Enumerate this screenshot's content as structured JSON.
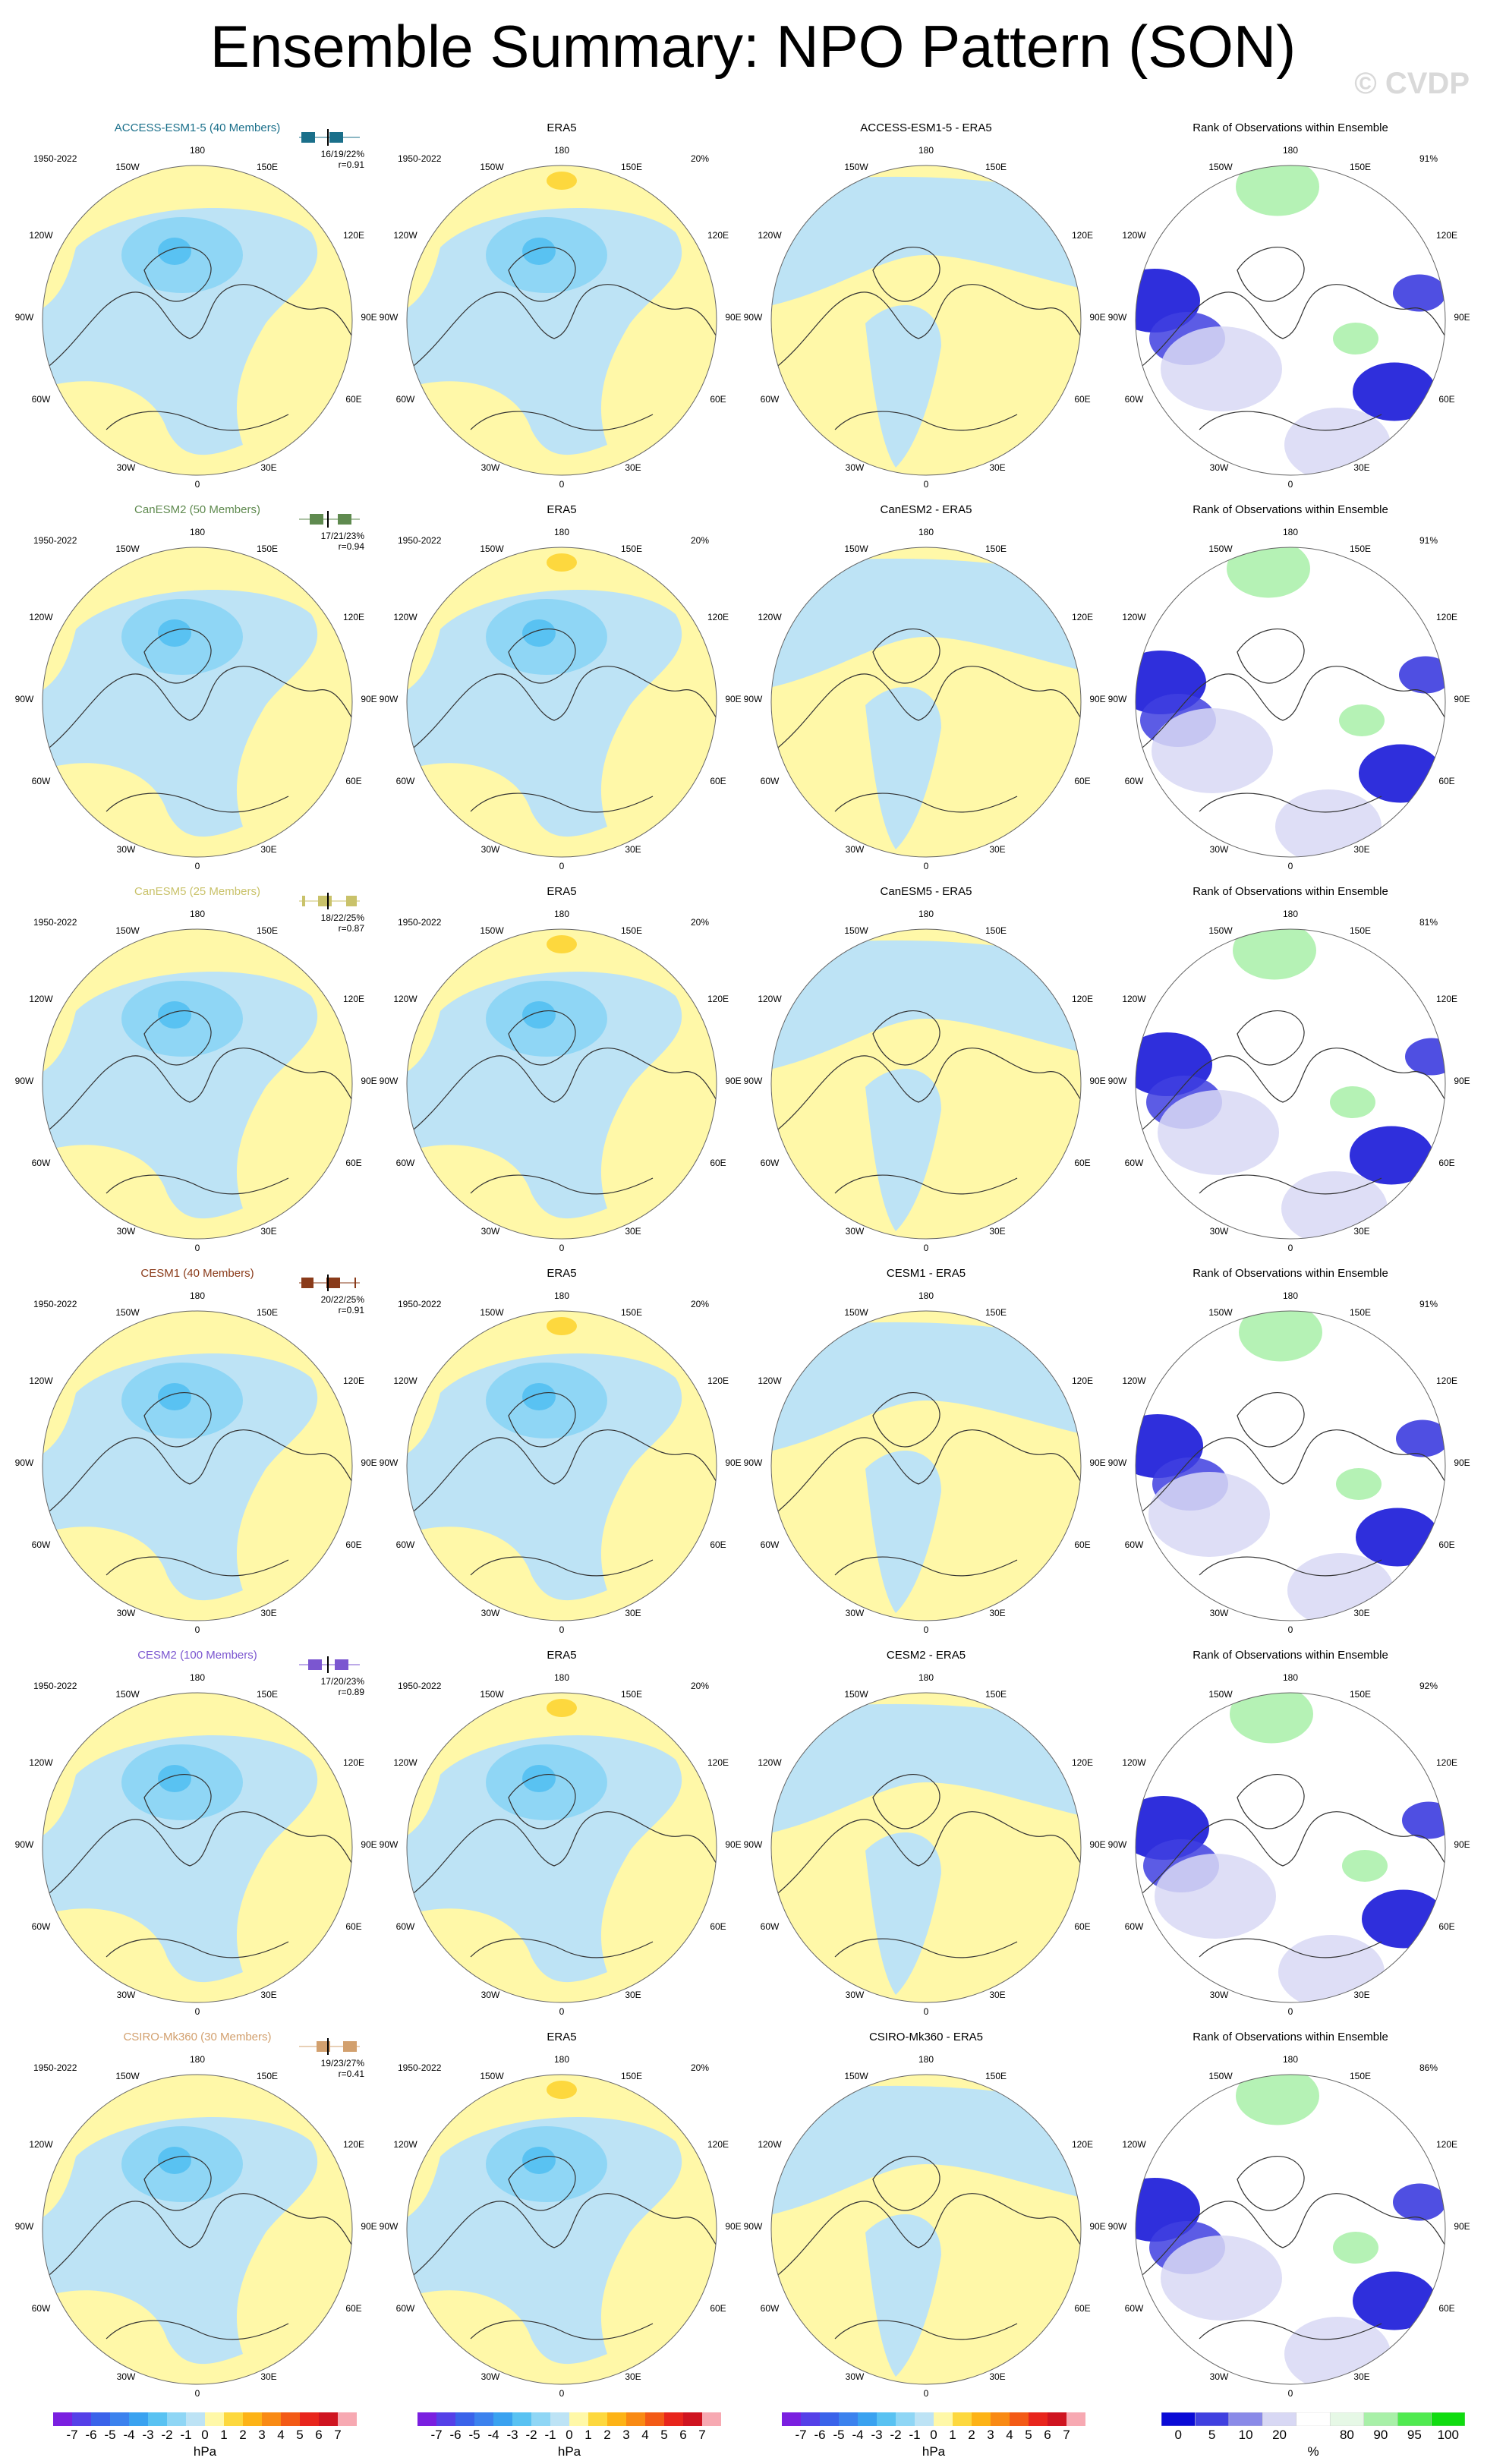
{
  "header": {
    "title": "Ensemble Summary: NPO Pattern (SON)",
    "watermark": "© CVDP"
  },
  "period": "1950-2022",
  "obs_name": "ERA5",
  "obs_pct": "20%",
  "rank_title": "Rank of Observations within Ensemble",
  "lon_labels": {
    "n": "180",
    "nw": "150W",
    "ne": "150E",
    "wnw": "120W",
    "ene": "120E",
    "w": "90W",
    "e": "90E",
    "wsw": "60W",
    "ese": "60E",
    "sw": "30W",
    "se": "30E",
    "s": "0"
  },
  "rows": [
    {
      "model": "ACCESS-ESM1-5 (40 Members)",
      "color": "#1a6f8a",
      "stats": "16/19/22%",
      "r": "r=0.91",
      "diff_title": "ACCESS-ESM1-5 - ERA5",
      "rank_pct": "91%"
    },
    {
      "model": "CanESM2 (50 Members)",
      "color": "#5f8a4f",
      "stats": "17/21/23%",
      "r": "r=0.94",
      "diff_title": "CanESM2 - ERA5",
      "rank_pct": "91%"
    },
    {
      "model": "CanESM5 (25 Members)",
      "color": "#c9c26a",
      "stats": "18/22/25%",
      "r": "r=0.87",
      "diff_title": "CanESM5 - ERA5",
      "rank_pct": "81%"
    },
    {
      "model": "CESM1 (40 Members)",
      "color": "#8a3b1a",
      "stats": "20/22/25%",
      "r": "r=0.91",
      "diff_title": "CESM1 - ERA5",
      "rank_pct": "91%"
    },
    {
      "model": "CESM2 (100 Members)",
      "color": "#7b56d0",
      "stats": "17/20/23%",
      "r": "r=0.89",
      "diff_title": "CESM2 - ERA5",
      "rank_pct": "92%"
    },
    {
      "model": "CSIRO-Mk360 (30 Members)",
      "color": "#d2a06e",
      "stats": "19/23/27%",
      "r": "r=0.41",
      "diff_title": "CSIRO-Mk360 - ERA5",
      "rank_pct": "86%"
    }
  ],
  "colorbar_hpa": {
    "labels": [
      "-7",
      "-6",
      "-5",
      "-4",
      "-3",
      "-2",
      "-1",
      "0",
      "1",
      "2",
      "3",
      "4",
      "5",
      "6",
      "7"
    ],
    "unit": "hPa",
    "colors": [
      "#7a1fe0",
      "#5540e8",
      "#3a63ea",
      "#3c82ee",
      "#3aa2f0",
      "#59c2f2",
      "#8fd6f5",
      "#bde3f5",
      "#fff8a8",
      "#fdd83e",
      "#fdb316",
      "#f98a14",
      "#f35a16",
      "#e8251c",
      "#cf1420",
      "#f7a9b2"
    ]
  },
  "colorbar_rank": {
    "labels": [
      "0",
      "5",
      "10",
      "20",
      "80",
      "90",
      "95",
      "100"
    ],
    "unit": "%",
    "colors": [
      "#0a0ad6",
      "#4040e0",
      "#8a8ae8",
      "#d8d8f4",
      "#ffffff",
      "#e6f8e6",
      "#a8f0a8",
      "#50ea50",
      "#10dc10"
    ]
  },
  "chart_data": [
    {
      "type": "heatmap",
      "title": "Ensemble Summary: NPO Pattern (SON)",
      "subtitle": "ACCESS-ESM1-5 (40 Members)",
      "period": "1950-2022",
      "pct_explained": "16/19/22%",
      "pattern_correlation": 0.91,
      "units": "hPa",
      "range": [
        -7,
        7
      ]
    },
    {
      "type": "heatmap",
      "subtitle": "CanESM2 (50 Members)",
      "pct_explained": "17/21/23%",
      "pattern_correlation": 0.94,
      "units": "hPa"
    },
    {
      "type": "heatmap",
      "subtitle": "CanESM5 (25 Members)",
      "pct_explained": "18/22/25%",
      "pattern_correlation": 0.87,
      "units": "hPa"
    },
    {
      "type": "heatmap",
      "subtitle": "CESM1 (40 Members)",
      "pct_explained": "20/22/25%",
      "pattern_correlation": 0.91,
      "units": "hPa"
    },
    {
      "type": "heatmap",
      "subtitle": "CESM2 (100 Members)",
      "pct_explained": "17/20/23%",
      "pattern_correlation": 0.89,
      "units": "hPa"
    },
    {
      "type": "heatmap",
      "subtitle": "CSIRO-Mk360 (30 Members)",
      "pct_explained": "19/23/27%",
      "pattern_correlation": 0.41,
      "units": "hPa"
    },
    {
      "type": "heatmap",
      "subtitle": "ERA5",
      "period": "1950-2022",
      "pct_explained": "20%",
      "units": "hPa"
    },
    {
      "type": "heatmap",
      "subtitle": "Rank of Observations within Ensemble",
      "units": "%",
      "levels": [
        0,
        5,
        10,
        20,
        80,
        90,
        95,
        100
      ],
      "pct_within": [
        "91%",
        "91%",
        "81%",
        "91%",
        "92%",
        "86%"
      ]
    }
  ]
}
